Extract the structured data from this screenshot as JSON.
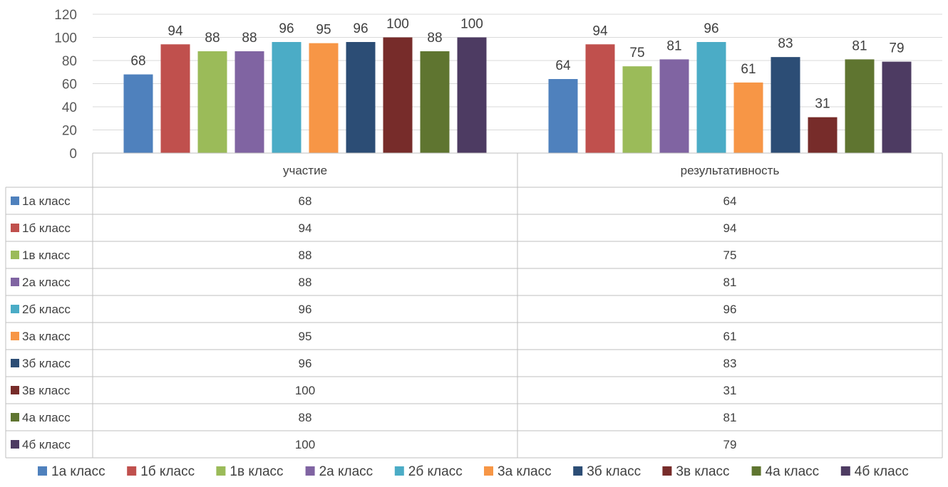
{
  "chart_data": {
    "type": "bar",
    "categories": [
      "участие",
      "результативность"
    ],
    "series": [
      {
        "name": "1а класс",
        "color": "#4F81BD",
        "values": [
          68,
          64
        ]
      },
      {
        "name": "1б класс",
        "color": "#C0504D",
        "values": [
          94,
          94
        ]
      },
      {
        "name": "1в класс",
        "color": "#9BBB59",
        "values": [
          88,
          75
        ]
      },
      {
        "name": "2а класс",
        "color": "#8064A2",
        "values": [
          88,
          81
        ]
      },
      {
        "name": "2б класс",
        "color": "#4BACC6",
        "values": [
          96,
          96
        ]
      },
      {
        "name": "3а класс",
        "color": "#F79646",
        "values": [
          95,
          61
        ]
      },
      {
        "name": "3б класс",
        "color": "#2C4D75",
        "values": [
          96,
          83
        ]
      },
      {
        "name": "3в класс",
        "color": "#772C2A",
        "values": [
          100,
          31
        ]
      },
      {
        "name": "4а класс",
        "color": "#5F7530",
        "values": [
          88,
          81
        ]
      },
      {
        "name": "4б класс",
        "color": "#4D3B62",
        "values": [
          100,
          79
        ]
      }
    ],
    "y_ticks": [
      "0",
      "20",
      "40",
      "60",
      "80",
      "100",
      "120"
    ],
    "ylim": [
      0,
      120
    ],
    "grid": true,
    "data_table": true,
    "legend_position": "bottom"
  }
}
